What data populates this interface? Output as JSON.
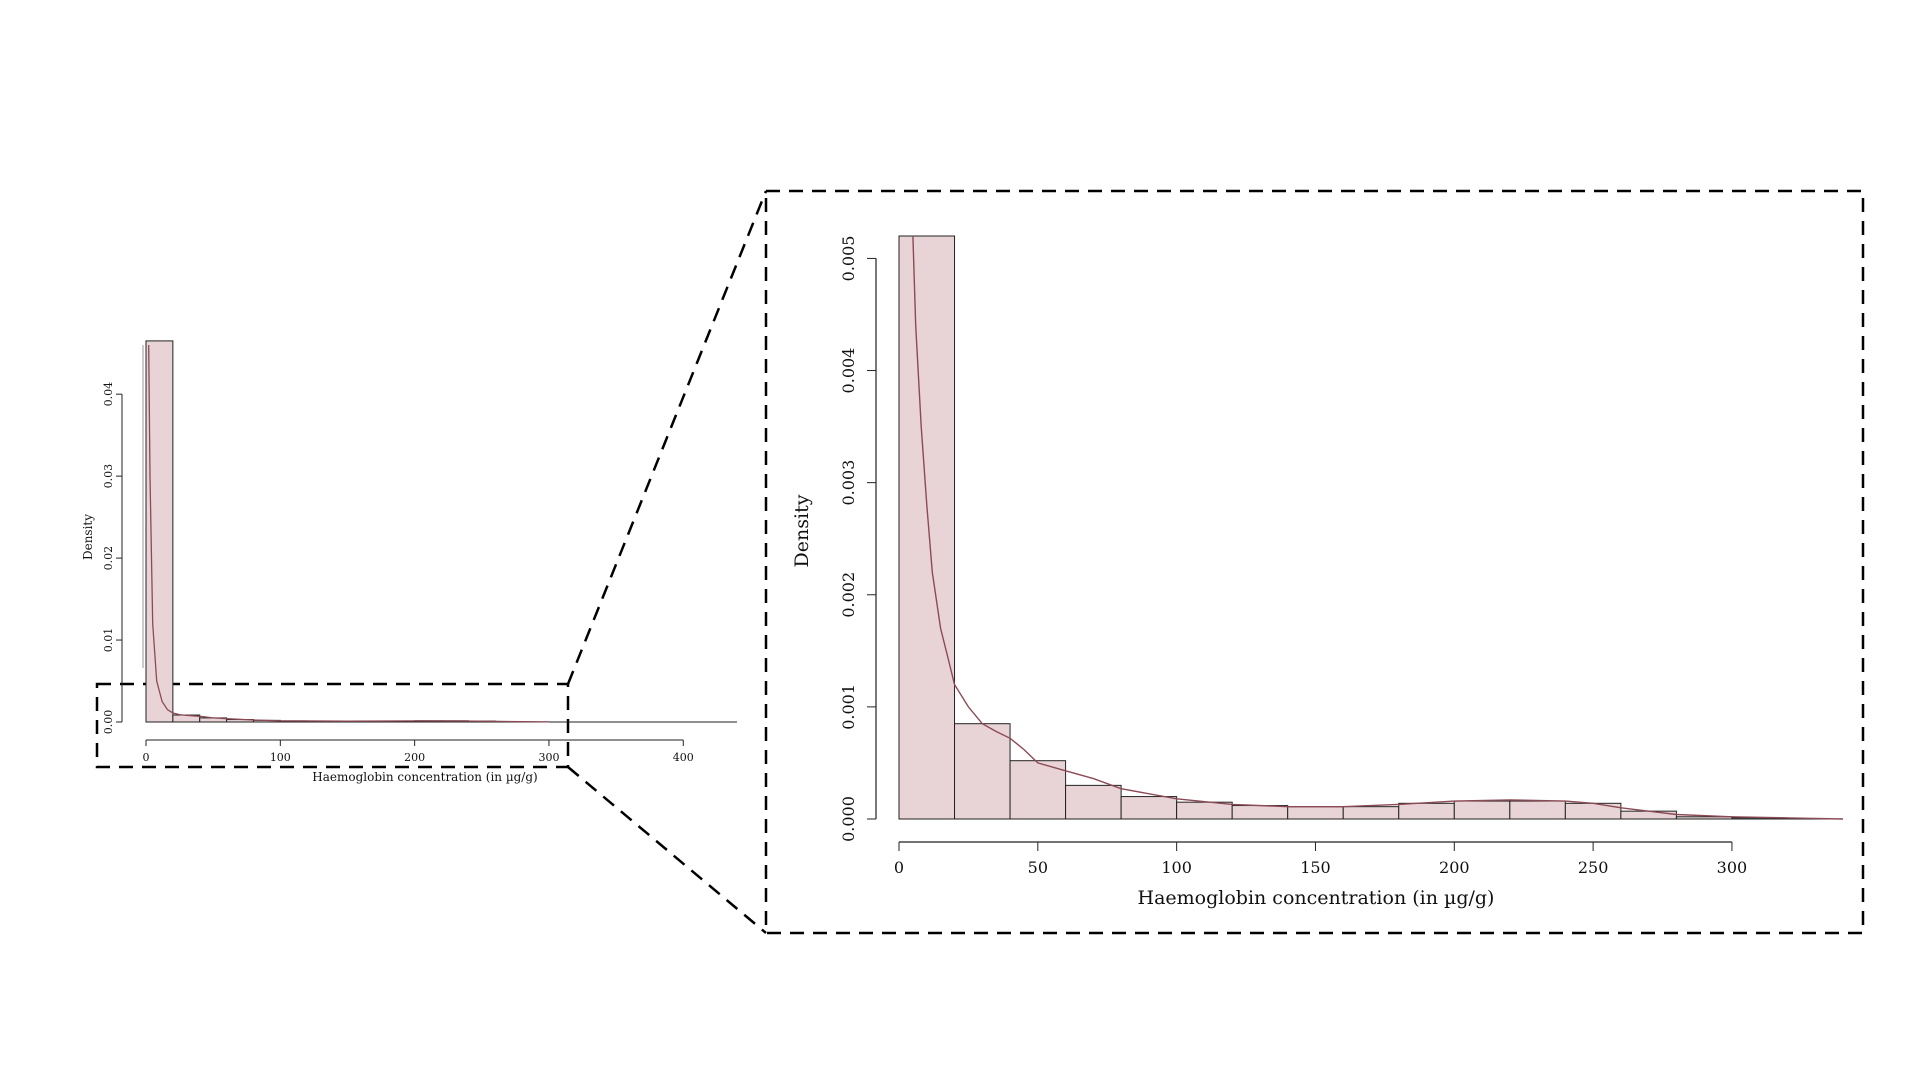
{
  "colors": {
    "bar_fill": "#e8d4d7",
    "bar_stroke": "#222222",
    "density_line": "#8b4a55",
    "frame": "#000000"
  },
  "chart_data": [
    {
      "id": "full",
      "type": "bar",
      "variant": "histogram",
      "xlabel": "Haemoglobin concentration (in µg/g)",
      "ylabel": "Density",
      "xlim": [
        0,
        440
      ],
      "ylim": [
        0,
        0.046
      ],
      "x_ticks": [
        0,
        100,
        200,
        300,
        400
      ],
      "y_ticks": [
        "0.00",
        "0.01",
        "0.02",
        "0.03",
        "0.04"
      ],
      "bin_edges": [
        0,
        20,
        40,
        60,
        80,
        100,
        120,
        140,
        160,
        180,
        200,
        220,
        240,
        260,
        280,
        300
      ],
      "values": [
        0.0465,
        0.00085,
        0.0005,
        0.0003,
        0.0002,
        0.00013,
        0.00011,
        0.0001,
        0.0001,
        0.00012,
        0.00015,
        0.00015,
        0.00012,
        5e-05,
        1e-05
      ],
      "density_curve": {
        "x": [
          2,
          3,
          5,
          8,
          12,
          16,
          20,
          25,
          30,
          40,
          50,
          60,
          80,
          100,
          150,
          200,
          250,
          300
        ],
        "y": [
          0.05,
          0.03,
          0.012,
          0.005,
          0.0025,
          0.0015,
          0.0011,
          0.0009,
          0.0008,
          0.0007,
          0.0005,
          0.0004,
          0.00025,
          0.00015,
          0.0001,
          0.00014,
          0.0001,
          1e-05
        ]
      }
    },
    {
      "id": "zoom",
      "type": "bar",
      "variant": "histogram",
      "xlabel": "Haemoglobin concentration (in µg/g)",
      "ylabel": "Density",
      "xlim": [
        0,
        340
      ],
      "ylim": [
        0,
        0.0052
      ],
      "x_ticks": [
        0,
        50,
        100,
        150,
        200,
        250,
        300
      ],
      "y_ticks": [
        "0.000",
        "0.001",
        "0.002",
        "0.003",
        "0.004",
        "0.005"
      ],
      "bin_edges": [
        0,
        20,
        40,
        60,
        80,
        100,
        120,
        140,
        160,
        180,
        200,
        220,
        240,
        260,
        280,
        300,
        320
      ],
      "values": [
        0.0052,
        0.00085,
        0.00052,
        0.0003,
        0.0002,
        0.00015,
        0.00012,
        0.00011,
        0.00011,
        0.00014,
        0.00016,
        0.00016,
        0.00014,
        7e-05,
        2e-05,
        1e-05
      ],
      "density_curve": {
        "x": [
          5,
          6,
          8,
          10,
          12,
          15,
          18,
          20,
          25,
          30,
          35,
          40,
          45,
          50,
          60,
          70,
          80,
          100,
          120,
          140,
          160,
          180,
          200,
          220,
          240,
          250,
          260,
          280,
          300,
          320,
          340
        ],
        "y": [
          0.0052,
          0.0044,
          0.0035,
          0.0028,
          0.0022,
          0.0017,
          0.0014,
          0.0012,
          0.001,
          0.00085,
          0.00078,
          0.00072,
          0.00062,
          0.0005,
          0.00043,
          0.00036,
          0.00027,
          0.00018,
          0.00013,
          0.00011,
          0.00011,
          0.00013,
          0.00016,
          0.00017,
          0.00016,
          0.00014,
          0.0001,
          4e-05,
          2e-05,
          1e-05,
          0.0
        ]
      }
    }
  ]
}
